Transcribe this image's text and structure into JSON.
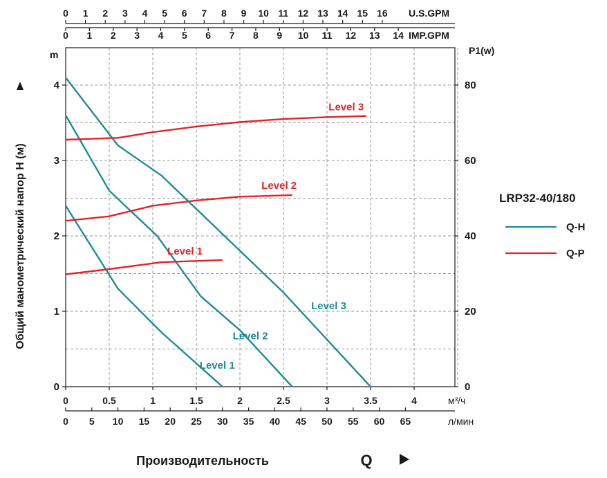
{
  "chart_data": {
    "type": "line",
    "model": "LRP32-40/180",
    "ylabel": "Общий манометрический напор H (м)",
    "y_unit": "m",
    "y2label": "P1(w)",
    "xlabel": "Производительность",
    "xlabel_symbol": "Q",
    "x_unit": "м³/ч",
    "ylim": [
      0,
      4.4
    ],
    "y2lim": [
      0,
      88
    ],
    "xlim": [
      0,
      4.55
    ],
    "y_ticks": [
      0,
      1,
      2,
      3,
      4
    ],
    "y2_ticks": [
      0,
      20,
      40,
      60,
      80
    ],
    "x_ticks": [
      0,
      0.5,
      1,
      1.5,
      2,
      2.5,
      3,
      3.5,
      4
    ],
    "x_tick_labels": [
      "0",
      "0.5",
      "1",
      "1.5",
      "2",
      "2.5",
      "3",
      "3.5",
      "4"
    ],
    "secondary_axes": [
      {
        "name": "U.S.GPM",
        "unit_label": "U.S.GPM",
        "factor_per_m3h": 4.4029,
        "ticks": [
          0,
          1,
          2,
          3,
          4,
          5,
          6,
          7,
          8,
          9,
          10,
          11,
          12,
          13,
          14,
          15,
          16
        ]
      },
      {
        "name": "IMP.GPM",
        "unit_label": "IMP.GPM",
        "factor_per_m3h": 3.6662,
        "ticks": [
          0,
          1,
          2,
          3,
          4,
          5,
          6,
          7,
          8,
          9,
          10,
          11,
          12,
          13,
          14
        ]
      },
      {
        "name": "л/мин",
        "unit_label": "л/мин",
        "factor_per_m3h": 16.667,
        "ticks": [
          0,
          5,
          10,
          15,
          20,
          25,
          30,
          35,
          40,
          45,
          50,
          55,
          60,
          65
        ]
      }
    ],
    "legend": [
      {
        "name": "Q-H",
        "color": "#1f8a9a"
      },
      {
        "name": "Q-P",
        "color": "#e2232a"
      }
    ],
    "series": [
      {
        "name": "Level 3",
        "kind": "Q-H",
        "axis": "H",
        "color": "#1f8a9a",
        "x": [
          0,
          0.6,
          1.1,
          2.5,
          3.5
        ],
        "y": [
          4.1,
          3.2,
          2.8,
          1.25,
          0
        ]
      },
      {
        "name": "Level 2",
        "kind": "Q-H",
        "axis": "H",
        "color": "#1f8a9a",
        "x": [
          0,
          0.5,
          1.05,
          1.55,
          2.0,
          2.6
        ],
        "y": [
          3.6,
          2.6,
          2.0,
          1.2,
          0.75,
          0
        ]
      },
      {
        "name": "Level 1",
        "kind": "Q-H",
        "axis": "H",
        "color": "#1f8a9a",
        "x": [
          0,
          0.6,
          1.1,
          1.8
        ],
        "y": [
          2.4,
          1.3,
          0.72,
          0
        ]
      },
      {
        "name": "Level 3",
        "kind": "Q-P",
        "axis": "P1",
        "color": "#e2232a",
        "x": [
          0,
          0.6,
          1.0,
          1.5,
          2.0,
          2.5,
          3.0,
          3.45
        ],
        "y": [
          65.5,
          66,
          67.5,
          69,
          70.2,
          71,
          71.5,
          71.8
        ]
      },
      {
        "name": "Level 2",
        "kind": "Q-P",
        "axis": "P1",
        "color": "#e2232a",
        "x": [
          0,
          0.5,
          1.0,
          1.5,
          2.0,
          2.6
        ],
        "y": [
          44,
          45.2,
          48,
          49.4,
          50.4,
          50.8
        ]
      },
      {
        "name": "Level 1",
        "kind": "Q-P",
        "axis": "P1",
        "color": "#e2232a",
        "x": [
          0,
          0.5,
          1.1,
          1.8
        ],
        "y": [
          29.8,
          31.2,
          33,
          33.6
        ]
      }
    ],
    "annotations": [
      {
        "text": "Level 3",
        "series": "Q-P Level 3",
        "color": "#e2232a"
      },
      {
        "text": "Level 2",
        "series": "Q-P Level 2",
        "color": "#e2232a"
      },
      {
        "text": "Level 1",
        "series": "Q-P Level 1",
        "color": "#e2232a"
      },
      {
        "text": "Level 3",
        "series": "Q-H Level 3",
        "color": "#1f8a9a"
      },
      {
        "text": "Level 2",
        "series": "Q-H Level 2",
        "color": "#1f8a9a"
      },
      {
        "text": "Level 1",
        "series": "Q-H Level 1",
        "color": "#1f8a9a"
      }
    ],
    "grid": true
  }
}
